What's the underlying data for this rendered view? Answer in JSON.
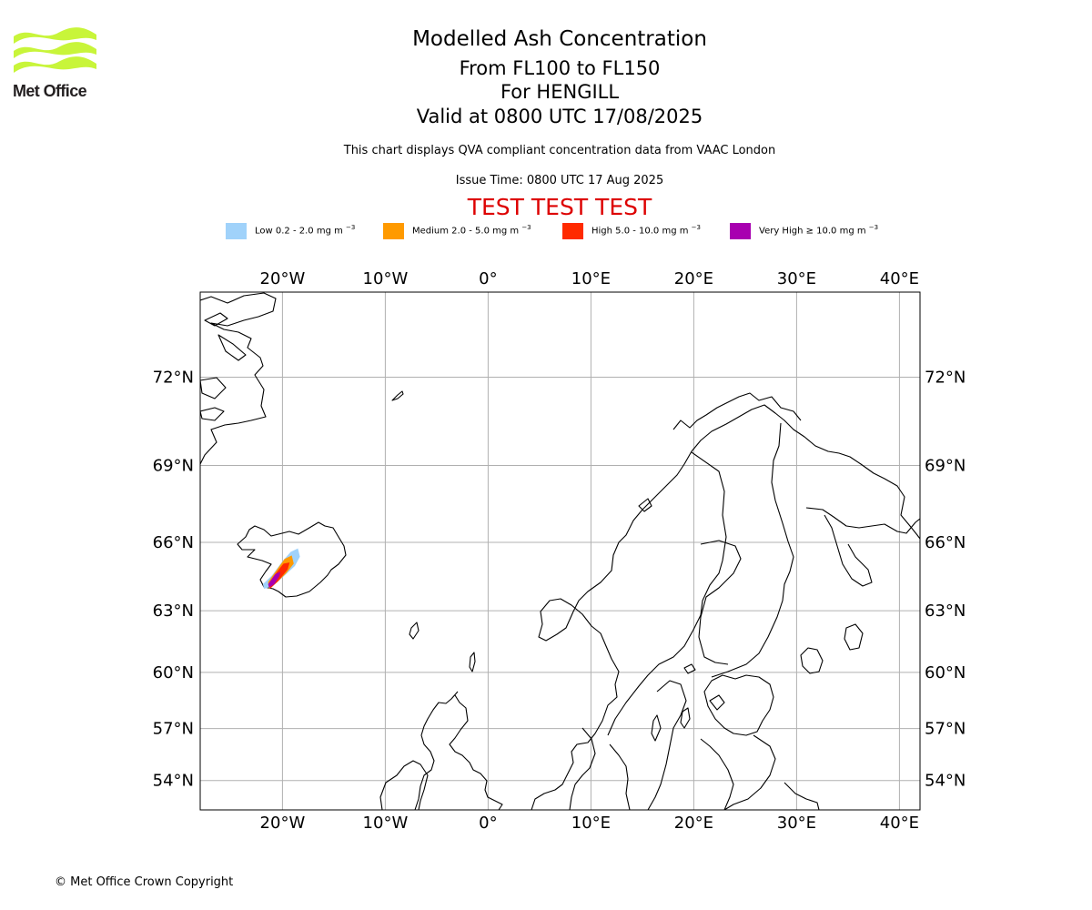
{
  "logo": {
    "text": "Met Office",
    "color": "#c8f53a"
  },
  "header": {
    "title": "Modelled Ash Concentration",
    "levels": "From FL100 to FL150",
    "volcano": "For HENGILL",
    "valid": "Valid at 0800 UTC 17/08/2025",
    "description": "This chart displays QVA compliant concentration data from VAAC London",
    "issue_time": "Issue Time: 0800 UTC 17 Aug 2025",
    "test_banner": "TEST TEST TEST"
  },
  "legend": [
    {
      "label": "Low 0.2 - 2.0 mg m",
      "exp": "−3",
      "color": "#a0d2fa"
    },
    {
      "label": "Medium 2.0 - 5.0 mg m",
      "exp": "−3",
      "color": "#ff9a00"
    },
    {
      "label": "High 5.0 - 10.0 mg m",
      "exp": "−3",
      "color": "#ff2a00"
    },
    {
      "label": "Very High  ≥  10.0 mg m",
      "exp": "−3",
      "color": "#a800b0"
    }
  ],
  "map": {
    "lon_range": [
      -28,
      42
    ],
    "lat_range": [
      52.2,
      74.5
    ],
    "lon_ticks": [
      {
        "value": -20,
        "label": "20°W"
      },
      {
        "value": -10,
        "label": "10°W"
      },
      {
        "value": 0,
        "label": "0°"
      },
      {
        "value": 10,
        "label": "10°E"
      },
      {
        "value": 20,
        "label": "20°E"
      },
      {
        "value": 30,
        "label": "30°E"
      },
      {
        "value": 40,
        "label": "40°E"
      }
    ],
    "lat_ticks": [
      {
        "value": 54,
        "label": "54°N"
      },
      {
        "value": 57,
        "label": "57°N"
      },
      {
        "value": 60,
        "label": "60°N"
      },
      {
        "value": 63,
        "label": "63°N"
      },
      {
        "value": 66,
        "label": "66°N"
      },
      {
        "value": 69,
        "label": "69°N"
      },
      {
        "value": 72,
        "label": "72°N"
      }
    ],
    "grid": true,
    "ash_plume_lonlat": {
      "low": [
        [
          -21.8,
          64.0
        ],
        [
          -21.0,
          64.1
        ],
        [
          -20.0,
          64.5
        ],
        [
          -18.8,
          65.0
        ],
        [
          -18.3,
          65.4
        ],
        [
          -18.5,
          65.75
        ],
        [
          -19.2,
          65.6
        ],
        [
          -20.0,
          65.2
        ],
        [
          -21.0,
          64.6
        ],
        [
          -21.9,
          64.2
        ]
      ],
      "medium": [
        [
          -21.3,
          64.0
        ],
        [
          -20.5,
          64.3
        ],
        [
          -19.6,
          64.7
        ],
        [
          -18.9,
          65.1
        ],
        [
          -19.1,
          65.45
        ],
        [
          -19.8,
          65.3
        ],
        [
          -20.6,
          64.8
        ],
        [
          -21.4,
          64.3
        ]
      ],
      "high": [
        [
          -21.2,
          64.0
        ],
        [
          -20.4,
          64.35
        ],
        [
          -19.5,
          64.85
        ],
        [
          -19.3,
          65.15
        ],
        [
          -19.9,
          65.1
        ],
        [
          -20.6,
          64.7
        ],
        [
          -21.3,
          64.25
        ]
      ],
      "very_high": [
        [
          -21.3,
          64.05
        ],
        [
          -20.8,
          64.2
        ],
        [
          -20.3,
          64.55
        ],
        [
          -20.2,
          64.75
        ],
        [
          -20.7,
          64.65
        ],
        [
          -21.1,
          64.4
        ],
        [
          -21.4,
          64.2
        ]
      ]
    }
  },
  "footer": {
    "copyright": "© Met Office Crown Copyright"
  }
}
